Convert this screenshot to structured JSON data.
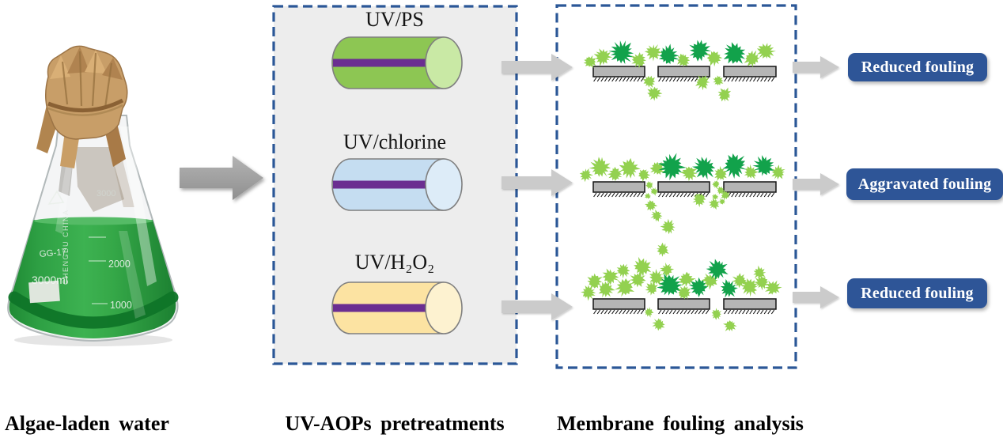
{
  "captions": {
    "flask": "Algae-laden water",
    "pretreatment": "UV-AOPs pretreatments",
    "membrane": "Membrane fouling analysis"
  },
  "flask_markings": {
    "model": "GG-17",
    "volume": "3000ml",
    "brand": "CHENGDU CHINA",
    "scale_top": "3000",
    "scale_mid": "2000",
    "scale_low": "1000"
  },
  "lamps": [
    {
      "id": "uv-ps",
      "label": "UV/PS",
      "body_color": "#8dc653",
      "end_color": "#c9e9a5"
    },
    {
      "id": "uv-chlorine",
      "label": "UV/chlorine",
      "body_color": "#c5ddf1",
      "end_color": "#ddecf8"
    },
    {
      "id": "uv-h2o2",
      "label": "UV/H₂O₂",
      "body_color": "#fce3a2",
      "end_color": "#fdf2d0"
    }
  ],
  "lamp_stripe_color": "#6b2e91",
  "results": [
    {
      "label": "Reduced fouling"
    },
    {
      "label": "Aggravated fouling"
    },
    {
      "label": "Reduced fouling"
    }
  ],
  "membrane_rows": [
    {
      "fouling": "reduced",
      "algae_above": [
        [
          746,
          78,
          8,
          "l"
        ],
        [
          762,
          72,
          11,
          "l"
        ],
        [
          786,
          67,
          15,
          "d"
        ],
        [
          808,
          76,
          10,
          "l"
        ],
        [
          826,
          66,
          10,
          "l"
        ],
        [
          845,
          70,
          13,
          "d"
        ],
        [
          864,
          76,
          9,
          "l"
        ],
        [
          884,
          64,
          13,
          "d"
        ],
        [
          903,
          73,
          10,
          "l"
        ],
        [
          929,
          68,
          14,
          "d"
        ],
        [
          951,
          74,
          10,
          "l"
        ],
        [
          968,
          65,
          11,
          "l"
        ]
      ],
      "algae_gap": [],
      "algae_below": [
        [
          821,
          103,
          8,
          "l"
        ],
        [
          827,
          118,
          9,
          "l"
        ],
        [
          888,
          104,
          9,
          "l"
        ],
        [
          908,
          102,
          7,
          "l"
        ],
        [
          916,
          120,
          9,
          "l"
        ]
      ]
    },
    {
      "fouling": "aggravated",
      "algae_above": [
        [
          741,
          221,
          8,
          "l"
        ],
        [
          759,
          212,
          13,
          "l"
        ],
        [
          778,
          220,
          9,
          "l"
        ],
        [
          796,
          213,
          12,
          "l"
        ],
        [
          814,
          221,
          8,
          "l"
        ],
        [
          831,
          213,
          9,
          "l"
        ],
        [
          849,
          211,
          16,
          "d"
        ],
        [
          871,
          219,
          10,
          "l"
        ],
        [
          891,
          212,
          14,
          "d"
        ],
        [
          911,
          220,
          9,
          "l"
        ],
        [
          929,
          209,
          15,
          "d"
        ],
        [
          949,
          218,
          9,
          "l"
        ],
        [
          966,
          210,
          13,
          "d"
        ],
        [
          984,
          218,
          9,
          "l"
        ]
      ],
      "algae_gap": [
        [
          821,
          234,
          5,
          "l"
        ],
        [
          827,
          242,
          5,
          "l"
        ],
        [
          819,
          248,
          4,
          "l"
        ],
        [
          905,
          233,
          5,
          "l"
        ],
        [
          911,
          241,
          5,
          "l"
        ],
        [
          904,
          249,
          4,
          "l"
        ],
        [
          913,
          255,
          4,
          "l"
        ]
      ],
      "algae_below": [
        [
          823,
          260,
          7,
          "l"
        ],
        [
          830,
          273,
          7,
          "l"
        ],
        [
          884,
          252,
          9,
          "l"
        ],
        [
          903,
          258,
          7,
          "l"
        ],
        [
          917,
          247,
          6,
          "l"
        ],
        [
          845,
          287,
          9,
          "l"
        ],
        [
          838,
          316,
          8,
          "l"
        ]
      ]
    },
    {
      "fouling": "reduced",
      "algae_above": [
        [
          744,
          370,
          9,
          "l"
        ],
        [
          752,
          356,
          10,
          "l"
        ],
        [
          766,
          366,
          10,
          "l"
        ],
        [
          772,
          350,
          10,
          "l"
        ],
        [
          788,
          342,
          9,
          "l"
        ],
        [
          790,
          363,
          12,
          "l"
        ],
        [
          806,
          354,
          10,
          "l"
        ],
        [
          812,
          338,
          12,
          "l"
        ],
        [
          824,
          365,
          8,
          "l"
        ],
        [
          830,
          351,
          10,
          "l"
        ],
        [
          843,
          341,
          8,
          "l"
        ],
        [
          847,
          361,
          15,
          "d"
        ],
        [
          865,
          370,
          9,
          "l"
        ],
        [
          868,
          353,
          10,
          "l"
        ],
        [
          883,
          363,
          12,
          "d"
        ],
        [
          898,
          355,
          10,
          "l"
        ],
        [
          907,
          341,
          13,
          "d"
        ],
        [
          921,
          365,
          11,
          "d"
        ],
        [
          935,
          355,
          9,
          "l"
        ],
        [
          948,
          363,
          11,
          "l"
        ],
        [
          960,
          345,
          8,
          "l"
        ],
        [
          963,
          357,
          9,
          "l"
        ],
        [
          977,
          364,
          10,
          "l"
        ]
      ],
      "algae_gap": [],
      "algae_below": [
        [
          820,
          395,
          6,
          "l"
        ],
        [
          833,
          410,
          8,
          "l"
        ],
        [
          906,
          397,
          7,
          "l"
        ],
        [
          923,
          412,
          8,
          "l"
        ]
      ]
    }
  ],
  "algae_colors": {
    "light": "#93d150",
    "dark": "#12a24b"
  },
  "palette": {
    "panel_border": "#2b5797",
    "panel_fill": "#ededed",
    "badge_bg": "#2e5597",
    "membrane_fill": "#b5b5b5",
    "arrow_main": "#9f9f9f",
    "arrow_light": "#cbcbcb",
    "liquid_green": "#2ea044"
  }
}
